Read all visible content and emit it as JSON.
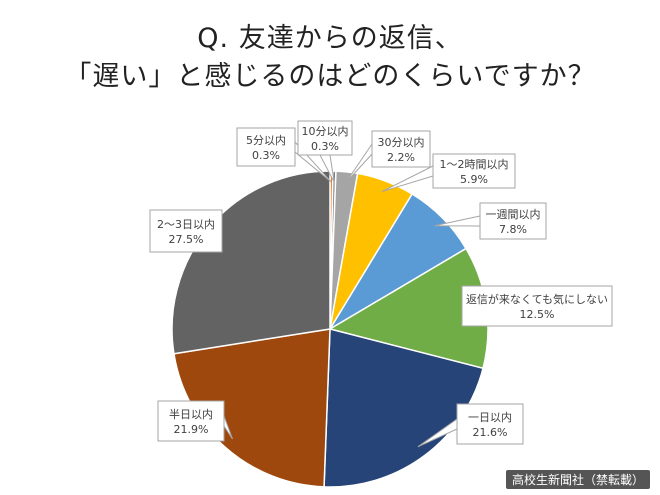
{
  "header": {
    "title_line1": "Q. 友達からの返信、",
    "title_line2": "「遅い」と感じるのはどのくらいですか？"
  },
  "chart_data": {
    "type": "pie",
    "title": "Q. 友達からの返信、「遅い」と感じるのはどのくらいですか？",
    "start_angle_deg": 0,
    "direction": "clockwise",
    "slices": [
      {
        "label": "5分以内",
        "value": 0.3,
        "value_label": "0.3%",
        "color": "#ED7D31"
      },
      {
        "label": "10分以内",
        "value": 0.3,
        "value_label": "0.3%",
        "color": "#7F7F7F"
      },
      {
        "label": "30分以内",
        "value": 2.2,
        "value_label": "2.2%",
        "color": "#A5A5A5"
      },
      {
        "label": "1〜2時間以内",
        "value": 5.9,
        "value_label": "5.9%",
        "color": "#FFC000"
      },
      {
        "label": "一週間以内",
        "value": 7.8,
        "value_label": "7.8%",
        "color": "#5B9BD5"
      },
      {
        "label": "返信が来なくても気にしない",
        "value": 12.5,
        "value_label": "12.5%",
        "color": "#70AD47"
      },
      {
        "label": "一日以内",
        "value": 21.6,
        "value_label": "21.6%",
        "color": "#264478"
      },
      {
        "label": "半日以内",
        "value": 21.9,
        "value_label": "21.9%",
        "color": "#9E480E"
      },
      {
        "label": "2〜3日以内",
        "value": 27.5,
        "value_label": "27.5%",
        "color": "#636363"
      }
    ]
  },
  "footer": {
    "credit": "高校生新聞社（禁転載）"
  }
}
